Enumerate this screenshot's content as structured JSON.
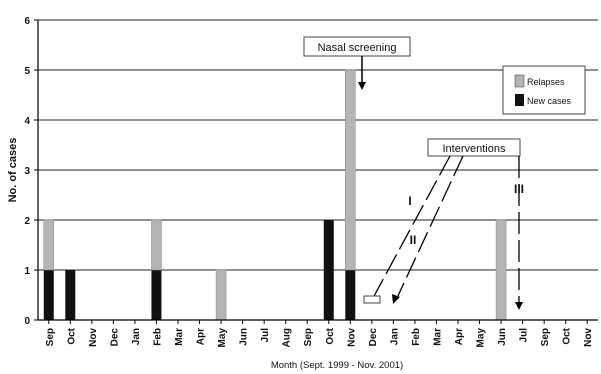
{
  "chart_data": {
    "type": "bar",
    "stacked": true,
    "xlabel": "Month (Sept. 1999 - Nov. 2001)",
    "ylabel": "No. of cases",
    "ylim": [
      0,
      6
    ],
    "yticks": [
      0,
      1,
      2,
      3,
      4,
      5,
      6
    ],
    "grid": "horizontal",
    "legend_position": "top-right",
    "categories": [
      "Sep",
      "Oct",
      "Nov",
      "Dec",
      "Jan",
      "Feb",
      "Mar",
      "Apr",
      "May",
      "Jun",
      "Jul",
      "Aug",
      "Sep",
      "Oct",
      "Nov",
      "Dec",
      "Jan",
      "Feb",
      "Mar",
      "Apr",
      "May",
      "Jun",
      "Jul",
      "Sep",
      "Oct",
      "Nov"
    ],
    "series": [
      {
        "name": "New cases",
        "color": "#111111",
        "values": [
          1,
          1,
          0,
          0,
          0,
          1,
          0,
          0,
          0,
          0,
          0,
          0,
          0,
          2,
          1,
          0,
          0,
          0,
          0,
          0,
          0,
          0,
          0,
          0,
          0,
          0
        ]
      },
      {
        "name": "Relapses",
        "color": "#b4b4b4",
        "values": [
          1,
          0,
          0,
          0,
          0,
          1,
          0,
          0,
          1,
          0,
          0,
          0,
          0,
          0,
          4,
          0,
          0,
          0,
          0,
          0,
          0,
          2,
          0,
          0,
          0,
          0
        ]
      }
    ],
    "annotations": [
      {
        "text": "Nasal screening",
        "target_index": 14
      },
      {
        "text": "Interventions",
        "labels": [
          {
            "text": "I",
            "target_index": 15
          },
          {
            "text": "II",
            "target_index": 15
          },
          {
            "text": "III",
            "target_index": 21
          }
        ]
      }
    ]
  }
}
